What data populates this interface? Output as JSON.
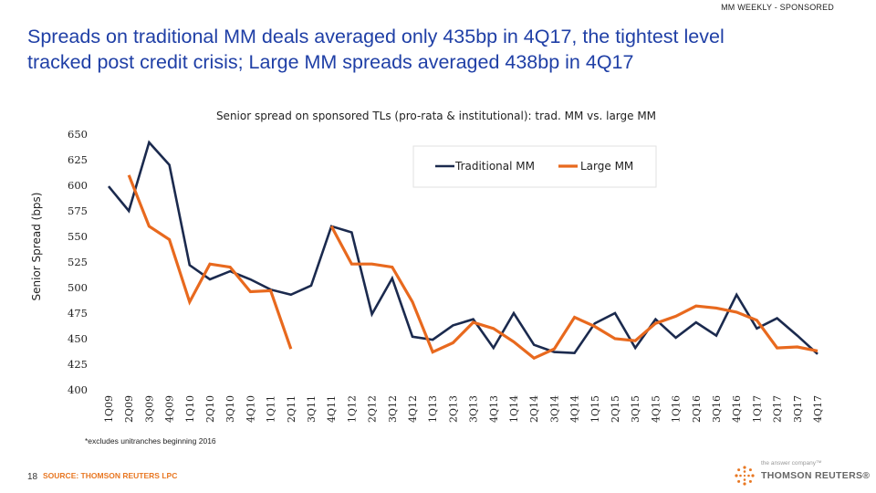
{
  "header": {
    "tag": "MM WEEKLY - SPONSORED"
  },
  "title": {
    "line1": "Spreads on traditional MM deals averaged only 435bp in 4Q17, the tightest level",
    "line2": "tracked post credit crisis; Large MM spreads averaged 438bp in 4Q17"
  },
  "chart_data": {
    "type": "line",
    "title": "Senior spread on sponsored TLs (pro-rata & institutional): trad. MM vs. large MM",
    "xlabel": "",
    "ylabel": "Senior Spread (bps)",
    "ylim": [
      400,
      650
    ],
    "yticks": [
      400,
      425,
      450,
      475,
      500,
      525,
      550,
      575,
      600,
      625,
      650
    ],
    "grid": false,
    "legend": "top-right",
    "categories": [
      "1Q09",
      "2Q09",
      "3Q09",
      "4Q09",
      "1Q10",
      "2Q10",
      "3Q10",
      "4Q10",
      "1Q11",
      "2Q11",
      "3Q11",
      "4Q11",
      "1Q12",
      "2Q12",
      "3Q12",
      "4Q12",
      "1Q13",
      "2Q13",
      "3Q13",
      "4Q13",
      "1Q14",
      "2Q14",
      "3Q14",
      "4Q14",
      "1Q15",
      "2Q15",
      "3Q15",
      "4Q15",
      "1Q16",
      "2Q16",
      "3Q16",
      "4Q16",
      "1Q17",
      "2Q17",
      "3Q17",
      "4Q17"
    ],
    "series": [
      {
        "name": "Traditional MM",
        "color": "#1b2a4e",
        "values": [
          599,
          575,
          642,
          620,
          522,
          508,
          516,
          508,
          498,
          493,
          502,
          560,
          554,
          474,
          509,
          452,
          449,
          463,
          469,
          441,
          475,
          444,
          437,
          436,
          465,
          475,
          441,
          469,
          451,
          466,
          453,
          493,
          460,
          470,
          453,
          435
        ]
      },
      {
        "name": "Large MM",
        "color": "#e8691e",
        "values": [
          null,
          610,
          560,
          547,
          486,
          523,
          520,
          496,
          497,
          440,
          null,
          560,
          523,
          523,
          520,
          486,
          437,
          446,
          466,
          460,
          447,
          431,
          440,
          471,
          462,
          450,
          448,
          465,
          472,
          482,
          480,
          476,
          468,
          441,
          442,
          438
        ]
      }
    ]
  },
  "footnote": "*excludes unitranches beginning 2016",
  "footer": {
    "page_number": "18",
    "source": "SOURCE: THOMSON REUTERS LPC",
    "brand_tagline": "the answer company™",
    "brand_name": "THOMSON REUTERS®"
  }
}
